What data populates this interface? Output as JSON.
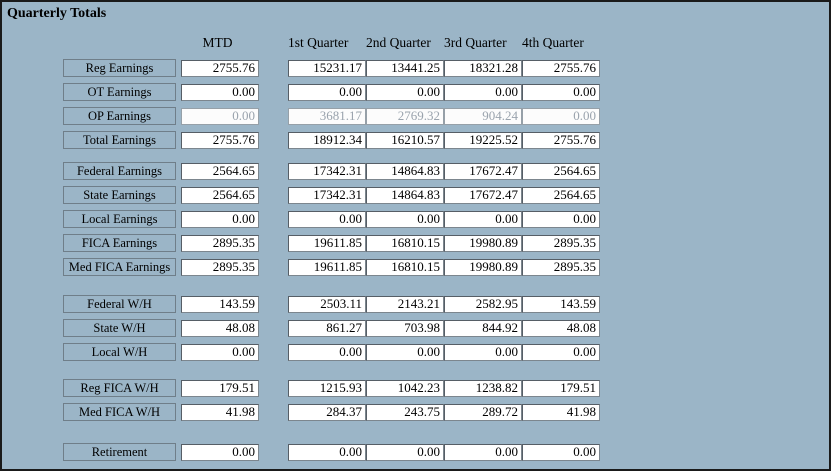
{
  "title": "Quarterly Totals",
  "columns": [
    "MTD",
    "1st Quarter",
    "2nd Quarter",
    "3rd Quarter",
    "4th Quarter"
  ],
  "colors": {
    "background": "#9bb5c7",
    "panel_border": "#1a1a1a",
    "input_text": "#000000",
    "disabled_text": "#9aa3ad"
  },
  "sections": [
    {
      "name": "earnings",
      "rows": [
        {
          "label": "Reg Earnings",
          "disabled": false,
          "values": [
            "2755.76",
            "15231.17",
            "13441.25",
            "18321.28",
            "2755.76"
          ]
        },
        {
          "label": "OT Earnings",
          "disabled": false,
          "values": [
            "0.00",
            "0.00",
            "0.00",
            "0.00",
            "0.00"
          ]
        },
        {
          "label": "OP Earnings",
          "disabled": true,
          "values": [
            "0.00",
            "3681.17",
            "2769.32",
            "904.24",
            "0.00"
          ]
        },
        {
          "label": "Total Earnings",
          "disabled": false,
          "values": [
            "2755.76",
            "18912.34",
            "16210.57",
            "19225.52",
            "2755.76"
          ]
        }
      ]
    },
    {
      "name": "taxable-earnings",
      "rows": [
        {
          "label": "Federal Earnings",
          "disabled": false,
          "values": [
            "2564.65",
            "17342.31",
            "14864.83",
            "17672.47",
            "2564.65"
          ]
        },
        {
          "label": "State Earnings",
          "disabled": false,
          "values": [
            "2564.65",
            "17342.31",
            "14864.83",
            "17672.47",
            "2564.65"
          ]
        },
        {
          "label": "Local Earnings",
          "disabled": false,
          "values": [
            "0.00",
            "0.00",
            "0.00",
            "0.00",
            "0.00"
          ]
        },
        {
          "label": "FICA Earnings",
          "disabled": false,
          "values": [
            "2895.35",
            "19611.85",
            "16810.15",
            "19980.89",
            "2895.35"
          ]
        },
        {
          "label": "Med FICA Earnings",
          "disabled": false,
          "values": [
            "2895.35",
            "19611.85",
            "16810.15",
            "19980.89",
            "2895.35"
          ]
        }
      ]
    },
    {
      "name": "withholding",
      "rows": [
        {
          "label": "Federal W/H",
          "disabled": false,
          "values": [
            "143.59",
            "2503.11",
            "2143.21",
            "2582.95",
            "143.59"
          ]
        },
        {
          "label": "State W/H",
          "disabled": false,
          "values": [
            "48.08",
            "861.27",
            "703.98",
            "844.92",
            "48.08"
          ]
        },
        {
          "label": "Local W/H",
          "disabled": false,
          "values": [
            "0.00",
            "0.00",
            "0.00",
            "0.00",
            "0.00"
          ]
        }
      ]
    },
    {
      "name": "fica-withholding",
      "rows": [
        {
          "label": "Reg FICA W/H",
          "disabled": false,
          "values": [
            "179.51",
            "1215.93",
            "1042.23",
            "1238.82",
            "179.51"
          ]
        },
        {
          "label": "Med FICA W/H",
          "disabled": false,
          "values": [
            "41.98",
            "284.37",
            "243.75",
            "289.72",
            "41.98"
          ]
        }
      ]
    },
    {
      "name": "retirement",
      "rows": [
        {
          "label": "Retirement",
          "disabled": false,
          "values": [
            "0.00",
            "0.00",
            "0.00",
            "0.00",
            "0.00"
          ]
        }
      ]
    }
  ]
}
